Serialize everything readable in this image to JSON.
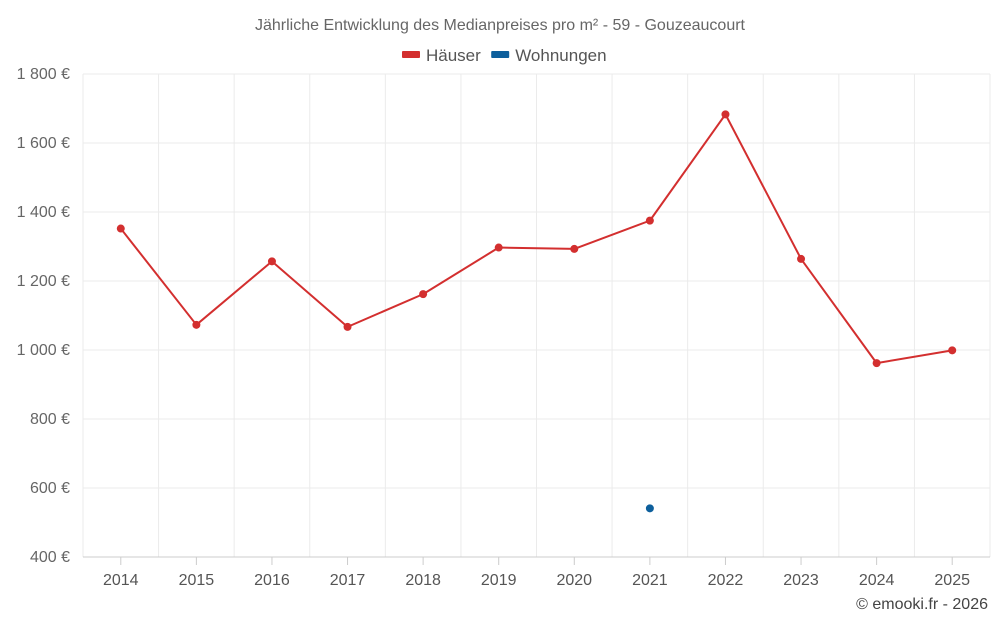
{
  "chart_data": {
    "type": "line",
    "title": "Jährliche Entwicklung des Medianpreises pro m² - 59 - Gouzeaucourt",
    "categories": [
      "2014",
      "2015",
      "2016",
      "2017",
      "2018",
      "2019",
      "2020",
      "2021",
      "2022",
      "2023",
      "2024",
      "2025"
    ],
    "series": [
      {
        "name": "Häuser",
        "color": "#d32f2f",
        "values": [
          1352,
          1073,
          1257,
          1067,
          1162,
          1297,
          1293,
          1375,
          1683,
          1264,
          962,
          999
        ]
      },
      {
        "name": "Wohnungen",
        "color": "#0d5f9c",
        "values": [
          null,
          null,
          null,
          null,
          null,
          null,
          null,
          541,
          null,
          null,
          null,
          null
        ]
      }
    ],
    "ylim": [
      400,
      1800
    ],
    "yticks": [
      400,
      600,
      800,
      1000,
      1200,
      1400,
      1600,
      1800
    ],
    "ytick_labels": [
      "400 €",
      "600 €",
      "800 €",
      "1 000 €",
      "1 200 €",
      "1 400 €",
      "1 600 €",
      "1 800 €"
    ],
    "xlabel": "",
    "ylabel": "",
    "legend_position": "top-center",
    "grid": true
  },
  "credit": "© emooki.fr - 2026"
}
